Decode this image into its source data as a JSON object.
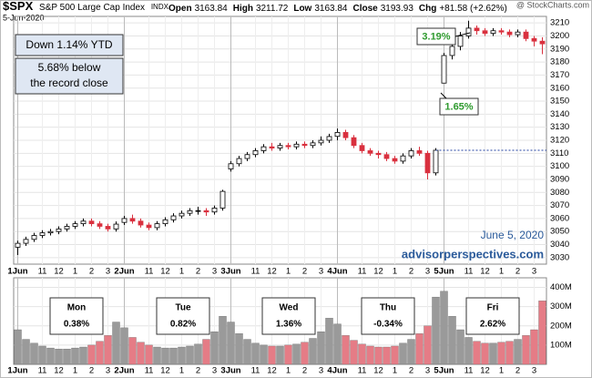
{
  "chart_data": {
    "type": "candlestick",
    "title": "$SPX",
    "subtitle": "S&P 500 Large Cap Index",
    "exchange": "INDX",
    "date": "5-Jun-2020",
    "watermark": "@ StockCharts.com",
    "quote": [
      {
        "label": "Open",
        "value": 3163.84
      },
      {
        "label": "High",
        "value": 3211.72
      },
      {
        "label": "Low",
        "value": 3163.84
      },
      {
        "label": "Close",
        "value": 3193.93
      }
    ],
    "change_label": "Chg",
    "change": "+81.58 (+2.62%)",
    "annotations": {
      "ytd": "Down 1.14% YTD",
      "record": [
        "5.68% below",
        "the record close"
      ],
      "high_pct": "3.19%",
      "low_pct": "1.65%",
      "date_note": "June 5, 2020",
      "source": "advisorperspectives.com"
    },
    "days": [
      {
        "name": "Mon",
        "change": "0.38%",
        "color": "#2e9a2e"
      },
      {
        "name": "Tue",
        "change": "0.82%",
        "color": "#2e9a2e"
      },
      {
        "name": "Wed",
        "change": "1.36%",
        "color": "#2e9a2e"
      },
      {
        "name": "Thu",
        "change": "-0.34%",
        "color": "#d0212f"
      },
      {
        "name": "Fri",
        "change": "2.62%",
        "color": "#2e9a2e"
      }
    ],
    "categories": [
      "1Jun",
      null,
      null,
      "11",
      null,
      "12",
      null,
      "1",
      null,
      "2",
      null,
      "3",
      null,
      "2Jun",
      null,
      null,
      "11",
      null,
      "12",
      null,
      "1",
      null,
      "2",
      null,
      "3",
      null,
      "3Jun",
      null,
      null,
      "11",
      null,
      "12",
      null,
      "1",
      null,
      "2",
      null,
      "3",
      null,
      "4Jun",
      null,
      null,
      "11",
      null,
      "12",
      null,
      "1",
      null,
      "2",
      null,
      "3",
      null,
      "5Jun",
      null,
      null,
      "11",
      null,
      "12",
      null,
      "1",
      null,
      "2",
      null,
      "3",
      null
    ],
    "open": [
      3038,
      3041,
      3044,
      3047,
      3049,
      3050,
      3052,
      3054,
      3056,
      3058,
      3056,
      3054,
      3052,
      3057,
      3060,
      3058,
      3055,
      3053,
      3056,
      3059,
      3062,
      3064,
      3066,
      3066,
      3065,
      3068,
      3098,
      3102,
      3106,
      3109,
      3112,
      3115,
      3114,
      3116,
      3115,
      3117,
      3116,
      3118,
      3120,
      3123,
      3126,
      3122,
      3116,
      3112,
      3110,
      3109,
      3106,
      3104,
      3108,
      3112,
      3110,
      3095,
      3163.84,
      3185,
      3192,
      3200,
      3206,
      3204,
      3202,
      3204,
      3203,
      3201,
      3203,
      3198,
      3196
    ],
    "high": [
      3043,
      3046,
      3049,
      3051,
      3052,
      3054,
      3056,
      3058,
      3060,
      3060,
      3058,
      3056,
      3057.7,
      3062,
      3063,
      3060,
      3057,
      3058,
      3061,
      3064,
      3066,
      3068,
      3069,
      3068,
      3070,
      3082,
      3104,
      3108,
      3111,
      3114,
      3117,
      3118,
      3118,
      3118,
      3119,
      3119,
      3120,
      3123,
      3125,
      3129,
      3128,
      3124,
      3118,
      3114,
      3112,
      3111,
      3108,
      3110,
      3114,
      3115,
      3112,
      3114,
      3187,
      3194,
      3203,
      3211.72,
      3208,
      3206,
      3206,
      3206,
      3205,
      3205,
      3205,
      3200,
      3199
    ],
    "low": [
      3032,
      3039,
      3042,
      3045,
      3047,
      3048,
      3050,
      3052,
      3054,
      3054,
      3052,
      3050,
      3050,
      3055,
      3056,
      3053,
      3051,
      3051,
      3054,
      3057,
      3060,
      3062,
      3063,
      3062,
      3063,
      3066,
      3096,
      3100,
      3104,
      3107,
      3110,
      3112,
      3112,
      3113,
      3113,
      3114,
      3114,
      3116,
      3118,
      3120,
      3120,
      3114,
      3110,
      3108,
      3106,
      3104,
      3102,
      3102,
      3106,
      3108,
      3090,
      3093,
      3163.84,
      3182,
      3189,
      3198,
      3201,
      3200,
      3200,
      3201,
      3199,
      3199,
      3196,
      3192,
      3186
    ],
    "close": [
      3041,
      3044,
      3047,
      3049,
      3050,
      3052,
      3054,
      3056,
      3058,
      3056,
      3054,
      3052,
      3055.7,
      3060,
      3058,
      3055,
      3053,
      3056,
      3059,
      3062,
      3064,
      3066,
      3066,
      3065,
      3068,
      3080.82,
      3102,
      3106,
      3109,
      3112,
      3115,
      3114,
      3116,
      3115,
      3117,
      3116,
      3118,
      3120,
      3122.87,
      3126,
      3122,
      3116,
      3112,
      3110,
      3109,
      3106,
      3104,
      3108,
      3112,
      3110,
      3095,
      3112.35,
      3185,
      3192,
      3200,
      3206,
      3204,
      3202,
      3204,
      3203,
      3201,
      3203,
      3198,
      3196,
      3193.93
    ],
    "up_color": "#000000",
    "down_color": "#d9303e",
    "reference_line": 3112.35,
    "reference_color": "#2040a0",
    "ylim": [
      3025,
      3215
    ],
    "yticks": [
      3030,
      3040,
      3050,
      3060,
      3070,
      3080,
      3090,
      3100,
      3110,
      3120,
      3130,
      3140,
      3150,
      3160,
      3170,
      3180,
      3190,
      3200,
      3210
    ],
    "grid": true,
    "volume": {
      "values": [
        180,
        130,
        110,
        95,
        85,
        80,
        80,
        85,
        90,
        100,
        120,
        150,
        220,
        190,
        140,
        115,
        100,
        90,
        85,
        85,
        90,
        95,
        105,
        130,
        170,
        250,
        220,
        160,
        130,
        110,
        100,
        95,
        95,
        100,
        105,
        115,
        135,
        170,
        240,
        210,
        150,
        125,
        105,
        95,
        90,
        90,
        95,
        110,
        130,
        160,
        200,
        350,
        380,
        250,
        180,
        140,
        120,
        110,
        110,
        115,
        120,
        130,
        150,
        180,
        330
      ],
      "up_color": "#9a9a9a",
      "down_color": "#e57c86",
      "ylim": [
        0,
        450
      ],
      "yticks": [
        {
          "value": 100,
          "label": "100M"
        },
        {
          "value": 200,
          "label": "200M"
        },
        {
          "value": 300,
          "label": "300M"
        },
        {
          "value": 400,
          "label": "400M"
        }
      ]
    }
  }
}
